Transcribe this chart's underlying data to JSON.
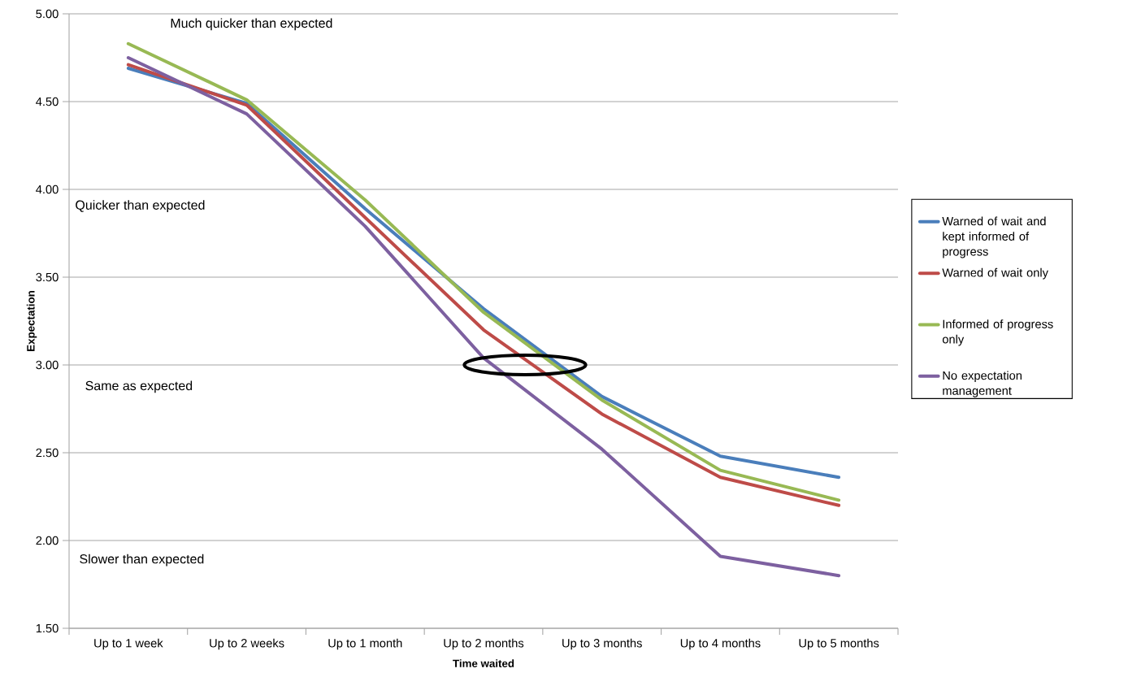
{
  "chart_data": {
    "type": "line",
    "xlabel": "Time waited",
    "ylabel": "Expectation",
    "categories": [
      "Up to 1 week",
      "Up to 2 weeks",
      "Up to 1 month",
      "Up to 2 months",
      "Up to 3 months",
      "Up to 4 months",
      "Up to 5 months"
    ],
    "series": [
      {
        "name": "Warned of wait and kept informed of progress",
        "color": "#4a7ebb",
        "values": [
          4.69,
          4.49,
          3.89,
          3.32,
          2.82,
          2.48,
          2.36
        ]
      },
      {
        "name": "Warned of wait only",
        "color": "#be4b48",
        "values": [
          4.71,
          4.48,
          3.84,
          3.2,
          2.72,
          2.36,
          2.2
        ]
      },
      {
        "name": "Informed of progress only",
        "color": "#98b954",
        "values": [
          4.83,
          4.51,
          3.94,
          3.3,
          2.8,
          2.4,
          2.23
        ]
      },
      {
        "name": "No expectation management",
        "color": "#7d60a0",
        "values": [
          4.75,
          4.43,
          3.79,
          3.04,
          2.52,
          1.91,
          1.8
        ]
      }
    ],
    "ylim": [
      1.5,
      5
    ],
    "yticks": [
      {
        "value": 1.5,
        "label": "1.50"
      },
      {
        "value": 2,
        "label": "2.00"
      },
      {
        "value": 2.5,
        "label": "2.50"
      },
      {
        "value": 3,
        "label": "3.00"
      },
      {
        "value": 3.5,
        "label": "3.50"
      },
      {
        "value": 4,
        "label": "4.00"
      },
      {
        "value": 4.5,
        "label": "4.50"
      },
      {
        "value": 5,
        "label": "5.00"
      }
    ],
    "annotations": [
      "Much quicker than expected",
      "Quicker than expected",
      "Same as expected",
      "Slower than expected"
    ],
    "grid": "y",
    "legend": "right",
    "marker": "none",
    "line_style": "solid"
  }
}
